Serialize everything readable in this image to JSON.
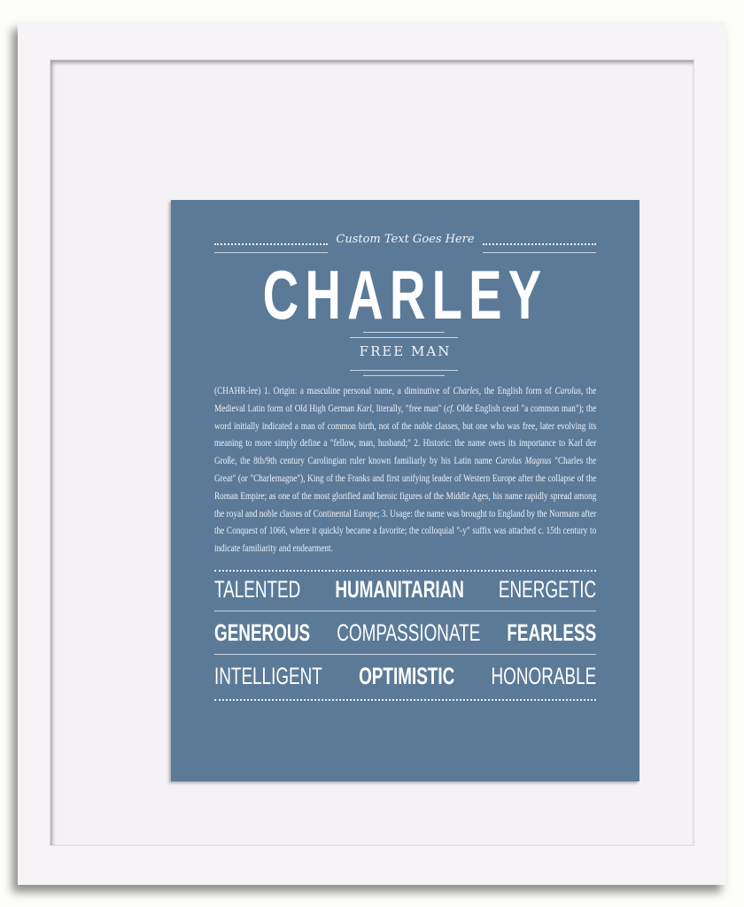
{
  "print": {
    "background": "#5b7a98",
    "custom_text": "Custom Text Goes Here",
    "name": "CHARLEY",
    "meaning": "FREE MAN",
    "definition": [
      {
        "t": "(CHAHR-lee) 1. Origin: a masculine personal name, a diminutive of "
      },
      {
        "t": "Charles",
        "i": true
      },
      {
        "t": ", the English form of "
      },
      {
        "t": "Carolus",
        "i": true
      },
      {
        "t": ", the Medieval Latin form of Old High German "
      },
      {
        "t": "Karl",
        "i": true
      },
      {
        "t": ", literally, \"free man\" ("
      },
      {
        "t": "cf.",
        "i": true
      },
      {
        "t": " Olde English ceorl \"a common man\"); the word initially indicated a man of common birth, not of the noble classes, but one who was free, later evolving its meaning to more simply define a \"fellow, man, husband;\" 2. Historic: the name owes its importance to Karl der Große, the 8th/9th century Carolingian ruler known familiarly by his Latin name "
      },
      {
        "t": "Carolus Magnus",
        "i": true
      },
      {
        "t": " \"Charles the Great\" (or \"Charlemagne\"), King of the Franks and first unifying leader of Western Europe after the collapse of the Roman Empire; as one of the most glorified and heroic figures of the Middle Ages, his name rapidly spread among the royal and noble classes of Continental Europe; 3. Usage: the name was brought to England by the Normans after the Conquest of 1066, where it quickly became a favorite; the colloquial \"-y\" suffix was attached c. 15th century to indicate familiarity and endearment."
      }
    ],
    "traits": [
      [
        {
          "w": "TALENTED",
          "b": false
        },
        {
          "w": "HUMANITARIAN",
          "b": true
        },
        {
          "w": "ENERGETIC",
          "b": false
        }
      ],
      [
        {
          "w": "GENEROUS",
          "b": true
        },
        {
          "w": "COMPASSIONATE",
          "b": false
        },
        {
          "w": "FEARLESS",
          "b": true
        }
      ],
      [
        {
          "w": "INTELLIGENT",
          "b": false
        },
        {
          "w": "OPTIMISTIC",
          "b": true
        },
        {
          "w": "HONORABLE",
          "b": false
        }
      ]
    ]
  }
}
